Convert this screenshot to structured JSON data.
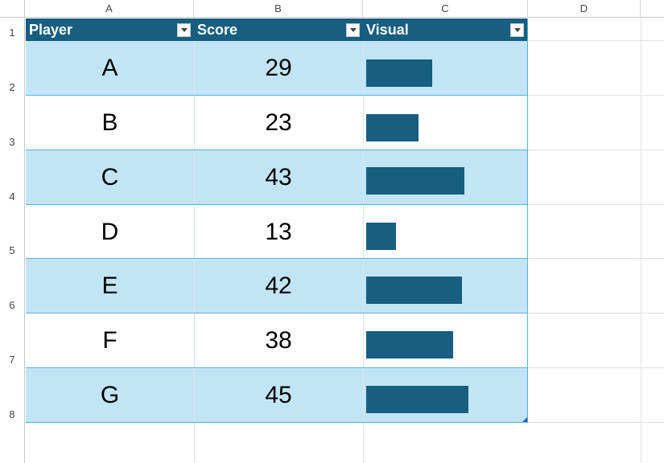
{
  "columns": [
    "A",
    "B",
    "C",
    "D"
  ],
  "rows": [
    "1",
    "2",
    "3",
    "4",
    "5",
    "6",
    "7",
    "8"
  ],
  "table": {
    "headers": [
      "Player",
      "Score",
      "Visual"
    ],
    "accent_color": "#175e80",
    "band_color": "#c1e5f5",
    "records": [
      {
        "player": "A",
        "score": "29",
        "visual": 29
      },
      {
        "player": "B",
        "score": "23",
        "visual": 23
      },
      {
        "player": "C",
        "score": "43",
        "visual": 43
      },
      {
        "player": "D",
        "score": "13",
        "visual": 13
      },
      {
        "player": "E",
        "score": "42",
        "visual": 42
      },
      {
        "player": "F",
        "score": "38",
        "visual": 38
      },
      {
        "player": "G",
        "score": "45",
        "visual": 45
      }
    ]
  }
}
